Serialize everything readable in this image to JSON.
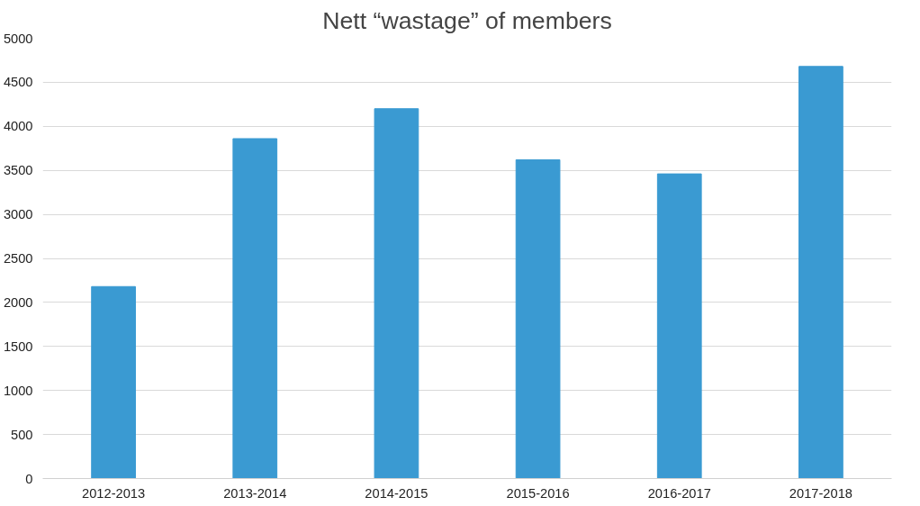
{
  "chart_data": {
    "type": "bar",
    "title": "Nett “wastage” of members",
    "categories": [
      "2012-2013",
      "2013-2014",
      "2014-2015",
      "2015-2016",
      "2016-2017",
      "2017-2018"
    ],
    "values": [
      2180,
      3860,
      4200,
      3620,
      3460,
      4680
    ],
    "color": "#3a9ad2",
    "ylim": [
      0,
      5000
    ],
    "yticks": [
      0,
      500,
      1000,
      1500,
      2000,
      2500,
      3000,
      3500,
      4000,
      4500,
      5000
    ],
    "grid": "y"
  }
}
